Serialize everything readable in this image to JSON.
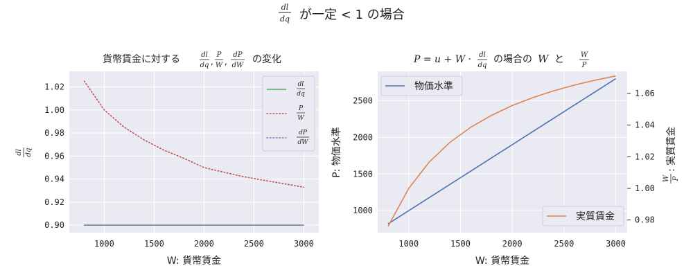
{
  "figure": {
    "title_frac_num": "dl",
    "title_frac_den": "dq",
    "title_rest": "が一定 < 1 の場合"
  },
  "chart_data": [
    {
      "type": "line",
      "title_prefix": "貨幣賃金に対する",
      "title_suffix": "の変化",
      "title_fracs": [
        {
          "num": "dl",
          "den": "dq"
        },
        {
          "num": "P",
          "den": "W"
        },
        {
          "num": "dP",
          "den": "dW"
        }
      ],
      "xlabel": "W: 貨幣賃金",
      "ylabel_frac": {
        "num": "dl",
        "den": "dq"
      },
      "xlim": [
        650,
        3150
      ],
      "ylim": [
        0.8935,
        1.0335
      ],
      "xticks": [
        1000,
        1500,
        2000,
        2500,
        3000
      ],
      "yticks": [
        0.9,
        0.92,
        0.94,
        0.96,
        0.98,
        1.0,
        1.02
      ],
      "ytick_labels": [
        "0.90",
        "0.92",
        "0.94",
        "0.96",
        "0.98",
        "1.00",
        "1.02"
      ],
      "grid": true,
      "legend_position": "top-right",
      "x": [
        800,
        1000,
        1200,
        1400,
        1600,
        1800,
        2000,
        2200,
        2400,
        2600,
        2800,
        3000
      ],
      "series": [
        {
          "name_num": "dl",
          "name_den": "dq",
          "color": "#55a868",
          "style": "solid",
          "values": [
            0.9,
            0.9,
            0.9,
            0.9,
            0.9,
            0.9,
            0.9,
            0.9,
            0.9,
            0.9,
            0.9,
            0.9
          ]
        },
        {
          "name_num": "P",
          "name_den": "W",
          "color": "#c44e52",
          "style": "dotted",
          "values": [
            1.025,
            1.0,
            0.985,
            0.974,
            0.965,
            0.958,
            0.95,
            0.946,
            0.942,
            0.939,
            0.936,
            0.933
          ]
        },
        {
          "name_num": "dP",
          "name_den": "dW",
          "color": "#8172b3",
          "style": "dotted",
          "values": [
            0.9,
            0.9,
            0.9,
            0.9,
            0.9,
            0.9,
            0.9,
            0.9,
            0.9,
            0.9,
            0.9,
            0.9
          ]
        }
      ]
    },
    {
      "type": "line",
      "title_math": "P = u + W ·",
      "title_frac": {
        "num": "dl",
        "den": "dq"
      },
      "title_mid": "の場合の",
      "title_w": "W",
      "title_and": "と",
      "title_frac2": {
        "num": "W",
        "den": "P"
      },
      "xlabel": "W: 貨幣賃金",
      "ylabel_left": "P: 物価水準",
      "ylabel_right_frac": {
        "num": "W",
        "den": "P"
      },
      "ylabel_right_text": ": 実質賃金",
      "xlim": [
        700,
        3110
      ],
      "ylim_left": [
        700,
        2900
      ],
      "ylim_right": [
        0.972,
        1.074
      ],
      "xticks": [
        1000,
        1500,
        2000,
        2500,
        3000
      ],
      "yticks_left": [
        1000,
        1500,
        2000,
        2500
      ],
      "yticks_right": [
        0.98,
        1.0,
        1.02,
        1.04,
        1.06
      ],
      "ytick_labels_right": [
        "0.98",
        "1.00",
        "1.02",
        "1.04",
        "1.06"
      ],
      "grid": true,
      "legend_left_position": "top-left",
      "legend_right_position": "bottom-right",
      "x": [
        800,
        1000,
        1200,
        1400,
        1600,
        1800,
        2000,
        2200,
        2400,
        2600,
        2800,
        3000
      ],
      "series": [
        {
          "name": "物価水準",
          "axis": "left",
          "color": "#4c72b0",
          "values": [
            820,
            1000,
            1180,
            1360,
            1540,
            1720,
            1900,
            2080,
            2260,
            2440,
            2620,
            2800
          ]
        },
        {
          "name": "実質賃金",
          "axis": "right",
          "color": "#dd8452",
          "values": [
            0.976,
            1.0,
            1.0168,
            1.0292,
            1.0387,
            1.0462,
            1.0524,
            1.0574,
            1.0617,
            1.0653,
            1.0684,
            1.0711
          ]
        }
      ]
    }
  ]
}
